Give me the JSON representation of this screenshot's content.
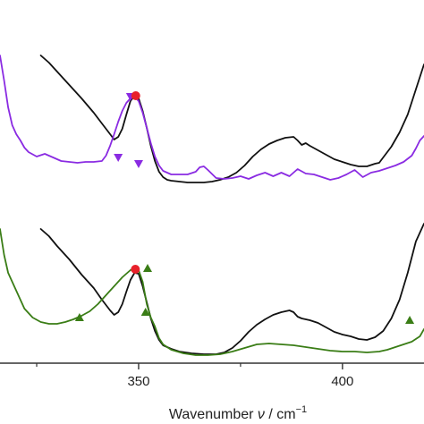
{
  "chart_data": {
    "type": "line",
    "xlabel": "Wavenumber ν / cm⁻¹",
    "xlabel_parts": {
      "main": "Wavenumber ",
      "symbol": "ν",
      "mid": " / cm",
      "sup": "−1"
    },
    "xlim": [
      316,
      420
    ],
    "xticks": [
      {
        "value": 350,
        "label": "350"
      },
      {
        "value": 400,
        "label": "400"
      }
    ],
    "minor_xticks": [
      325,
      375
    ],
    "yticks": false,
    "grid": false,
    "legend": "none",
    "colors": {
      "black": "#111111",
      "purple": "#8a2be2",
      "green": "#3a7d16",
      "red": "#e8202a",
      "axis": "#333333"
    },
    "panels": [
      {
        "position": "upper",
        "series": [
          {
            "color": "#111111",
            "values": [
              [
                326,
                62
              ],
              [
                328,
                70
              ],
              [
                330,
                80
              ],
              [
                333,
                95
              ],
              [
                336,
                110
              ],
              [
                339,
                126
              ],
              [
                341,
                138
              ],
              [
                343,
                150
              ],
              [
                344,
                156
              ],
              [
                345,
                153
              ],
              [
                346,
                144
              ],
              [
                347,
                128
              ],
              [
                348,
                113
              ],
              [
                349,
                107
              ],
              [
                350,
                110
              ],
              [
                351,
                124
              ],
              [
                352,
                143
              ],
              [
                353,
                163
              ],
              [
                354,
                180
              ],
              [
                355,
                192
              ],
              [
                356,
                198
              ],
              [
                357,
                201
              ],
              [
                358,
                202
              ],
              [
                360,
                203
              ],
              [
                362,
                204
              ],
              [
                364,
                204
              ],
              [
                366,
                204
              ],
              [
                368,
                203
              ],
              [
                370,
                201
              ],
              [
                372,
                198
              ],
              [
                374,
                193
              ],
              [
                376,
                185
              ],
              [
                378,
                175
              ],
              [
                380,
                167
              ],
              [
                382,
                161
              ],
              [
                384,
                157
              ],
              [
                386,
                154
              ],
              [
                388,
                153
              ],
              [
                389,
                157
              ],
              [
                390,
                162
              ],
              [
                391,
                160
              ],
              [
                392,
                163
              ],
              [
                394,
                168
              ],
              [
                396,
                173
              ],
              [
                398,
                178
              ],
              [
                400,
                181
              ],
              [
                402,
                184
              ],
              [
                404,
                186
              ],
              [
                406,
                186
              ],
              [
                408,
                183
              ],
              [
                409,
                182
              ],
              [
                410,
                176
              ],
              [
                412,
                164
              ],
              [
                414,
                148
              ],
              [
                416,
                128
              ],
              [
                418,
                100
              ],
              [
                420,
                72
              ]
            ]
          },
          {
            "color": "#8a2be2",
            "values": [
              [
                316,
                62
              ],
              [
                317,
                90
              ],
              [
                318,
                120
              ],
              [
                319,
                140
              ],
              [
                320,
                150
              ],
              [
                321,
                157
              ],
              [
                322,
                165
              ],
              [
                323,
                170
              ],
              [
                325,
                175
              ],
              [
                327,
                172
              ],
              [
                329,
                176
              ],
              [
                331,
                180
              ],
              [
                333,
                181
              ],
              [
                335,
                182
              ],
              [
                337,
                181
              ],
              [
                339,
                181
              ],
              [
                341,
                180
              ],
              [
                342,
                174
              ],
              [
                343,
                163
              ],
              [
                344,
                150
              ],
              [
                345,
                136
              ],
              [
                346,
                124
              ],
              [
                347,
                115
              ],
              [
                348,
                110
              ],
              [
                349,
                108
              ],
              [
                350,
                113
              ],
              [
                351,
                126
              ],
              [
                352,
                143
              ],
              [
                353,
                160
              ],
              [
                354,
                175
              ],
              [
                355,
                185
              ],
              [
                356,
                191
              ],
              [
                358,
                195
              ],
              [
                360,
                195
              ],
              [
                362,
                195
              ],
              [
                364,
                192
              ],
              [
                365,
                187
              ],
              [
                366,
                186
              ],
              [
                367,
                190
              ],
              [
                369,
                199
              ],
              [
                371,
                200
              ],
              [
                373,
                199
              ],
              [
                375,
                197
              ],
              [
                377,
                200
              ],
              [
                379,
                196
              ],
              [
                381,
                193
              ],
              [
                383,
                197
              ],
              [
                385,
                193
              ],
              [
                387,
                197
              ],
              [
                389,
                189
              ],
              [
                391,
                194
              ],
              [
                393,
                195
              ],
              [
                395,
                198
              ],
              [
                397,
                201
              ],
              [
                399,
                199
              ],
              [
                401,
                195
              ],
              [
                403,
                190
              ],
              [
                405,
                198
              ],
              [
                407,
                193
              ],
              [
                409,
                191
              ],
              [
                411,
                188
              ],
              [
                413,
                185
              ],
              [
                415,
                181
              ],
              [
                417,
                174
              ],
              [
                418,
                166
              ],
              [
                419,
                157
              ],
              [
                420,
                152
              ]
            ]
          }
        ],
        "markers": [
          {
            "series": "purple",
            "shape": "triangle-down",
            "points": [
              [
                348,
                108
              ],
              [
                345,
                176
              ],
              [
                350,
                183
              ]
            ]
          },
          {
            "series": "red",
            "shape": "circle",
            "points": [
              [
                349.3,
                107
              ]
            ]
          }
        ]
      },
      {
        "position": "lower",
        "series": [
          {
            "color": "#111111",
            "values": [
              [
                326,
                256
              ],
              [
                328,
                264
              ],
              [
                330,
                275
              ],
              [
                333,
                290
              ],
              [
                336,
                307
              ],
              [
                339,
                322
              ],
              [
                341,
                335
              ],
              [
                343,
                347
              ],
              [
                344,
                352
              ],
              [
                345,
                349
              ],
              [
                346,
                340
              ],
              [
                347,
                326
              ],
              [
                348,
                313
              ],
              [
                349,
                305
              ],
              [
                350,
                306
              ],
              [
                351,
                320
              ],
              [
                352,
                338
              ],
              [
                353,
                356
              ],
              [
                354,
                370
              ],
              [
                355,
                380
              ],
              [
                356,
                386
              ],
              [
                358,
                390
              ],
              [
                360,
                393
              ],
              [
                363,
                395
              ],
              [
                366,
                396
              ],
              [
                369,
                396
              ],
              [
                371,
                394
              ],
              [
                373,
                389
              ],
              [
                375,
                381
              ],
              [
                377,
                371
              ],
              [
                379,
                363
              ],
              [
                381,
                357
              ],
              [
                383,
                352
              ],
              [
                385,
                349
              ],
              [
                387,
                347
              ],
              [
                388,
                349
              ],
              [
                389,
                354
              ],
              [
                390,
                356
              ],
              [
                392,
                358
              ],
              [
                394,
                361
              ],
              [
                396,
                366
              ],
              [
                398,
                371
              ],
              [
                400,
                374
              ],
              [
                402,
                376
              ],
              [
                404,
                379
              ],
              [
                406,
                380
              ],
              [
                408,
                377
              ],
              [
                410,
                370
              ],
              [
                412,
                356
              ],
              [
                414,
                335
              ],
              [
                416,
                305
              ],
              [
                418,
                270
              ],
              [
                420,
                250
              ]
            ]
          },
          {
            "color": "#3a7d16",
            "values": [
              [
                316,
                256
              ],
              [
                317,
                285
              ],
              [
                318,
                305
              ],
              [
                320,
                325
              ],
              [
                322,
                345
              ],
              [
                324,
                355
              ],
              [
                326,
                360
              ],
              [
                328,
                362
              ],
              [
                330,
                362
              ],
              [
                332,
                360
              ],
              [
                334,
                357
              ],
              [
                336,
                353
              ],
              [
                338,
                348
              ],
              [
                340,
                340
              ],
              [
                342,
                330
              ],
              [
                344,
                320
              ],
              [
                346,
                310
              ],
              [
                348,
                302
              ],
              [
                349,
                300
              ],
              [
                350,
                302
              ],
              [
                351,
                315
              ],
              [
                352,
                340
              ],
              [
                353,
                355
              ],
              [
                354,
                365
              ],
              [
                355,
                378
              ],
              [
                356,
                385
              ],
              [
                358,
                391
              ],
              [
                361,
                395
              ],
              [
                364,
                397
              ],
              [
                367,
                397
              ],
              [
                370,
                396
              ],
              [
                373,
                393
              ],
              [
                376,
                389
              ],
              [
                379,
                385
              ],
              [
                382,
                384
              ],
              [
                385,
                385
              ],
              [
                388,
                386
              ],
              [
                391,
                388
              ],
              [
                394,
                390
              ],
              [
                397,
                392
              ],
              [
                400,
                393
              ],
              [
                403,
                393
              ],
              [
                406,
                394
              ],
              [
                409,
                393
              ],
              [
                411,
                391
              ],
              [
                413,
                388
              ],
              [
                415,
                385
              ],
              [
                417,
                382
              ],
              [
                419,
                376
              ],
              [
                420,
                368
              ]
            ]
          }
        ],
        "markers": [
          {
            "series": "green",
            "shape": "triangle-up",
            "points": [
              [
                335.5,
                355
              ],
              [
                352.2,
                300
              ],
              [
                351.7,
                349
              ],
              [
                416.5,
                358
              ]
            ]
          },
          {
            "series": "red",
            "shape": "circle",
            "points": [
              [
                349.2,
                301
              ]
            ]
          }
        ]
      }
    ]
  }
}
